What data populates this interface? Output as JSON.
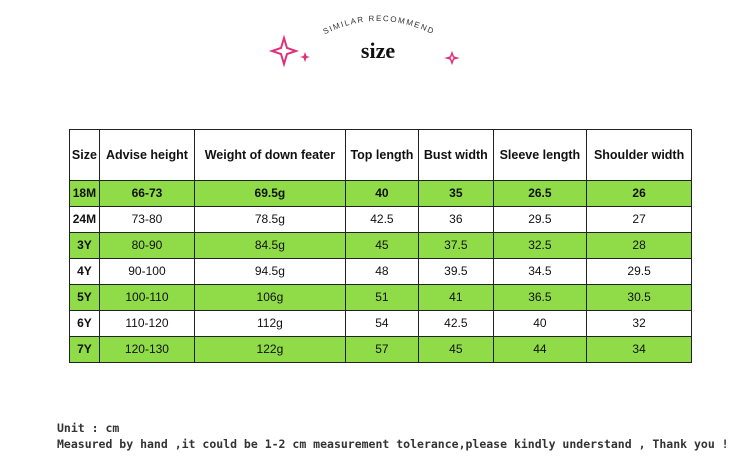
{
  "header": {
    "subtitle": "SIMILAR RECOMMEND",
    "title": "size"
  },
  "table": {
    "columns": [
      "Size",
      "Advise height",
      "Weight of down feater",
      "Top length",
      "Bust width",
      "Sleeve length",
      "Shoulder width"
    ],
    "rows": [
      [
        "18M",
        "66-73",
        "69.5g",
        "40",
        "35",
        "26.5",
        "26"
      ],
      [
        "24M",
        "73-80",
        "78.5g",
        "42.5",
        "36",
        "29.5",
        "27"
      ],
      [
        "3Y",
        "80-90",
        "84.5g",
        "45",
        "37.5",
        "32.5",
        "28"
      ],
      [
        "4Y",
        "90-100",
        "94.5g",
        "48",
        "39.5",
        "34.5",
        "29.5"
      ],
      [
        "5Y",
        "100-110",
        "106g",
        "51",
        "41",
        "36.5",
        "30.5"
      ],
      [
        "6Y",
        "110-120",
        "112g",
        "54",
        "42.5",
        "40",
        "32"
      ],
      [
        "7Y",
        "120-130",
        "122g",
        "57",
        "45",
        "44",
        "34"
      ]
    ]
  },
  "footer": {
    "unit": "Unit : cm",
    "note": "Measured by hand ,it could be 1-2 cm measurement tolerance,please kindly understand , Thank you !"
  }
}
